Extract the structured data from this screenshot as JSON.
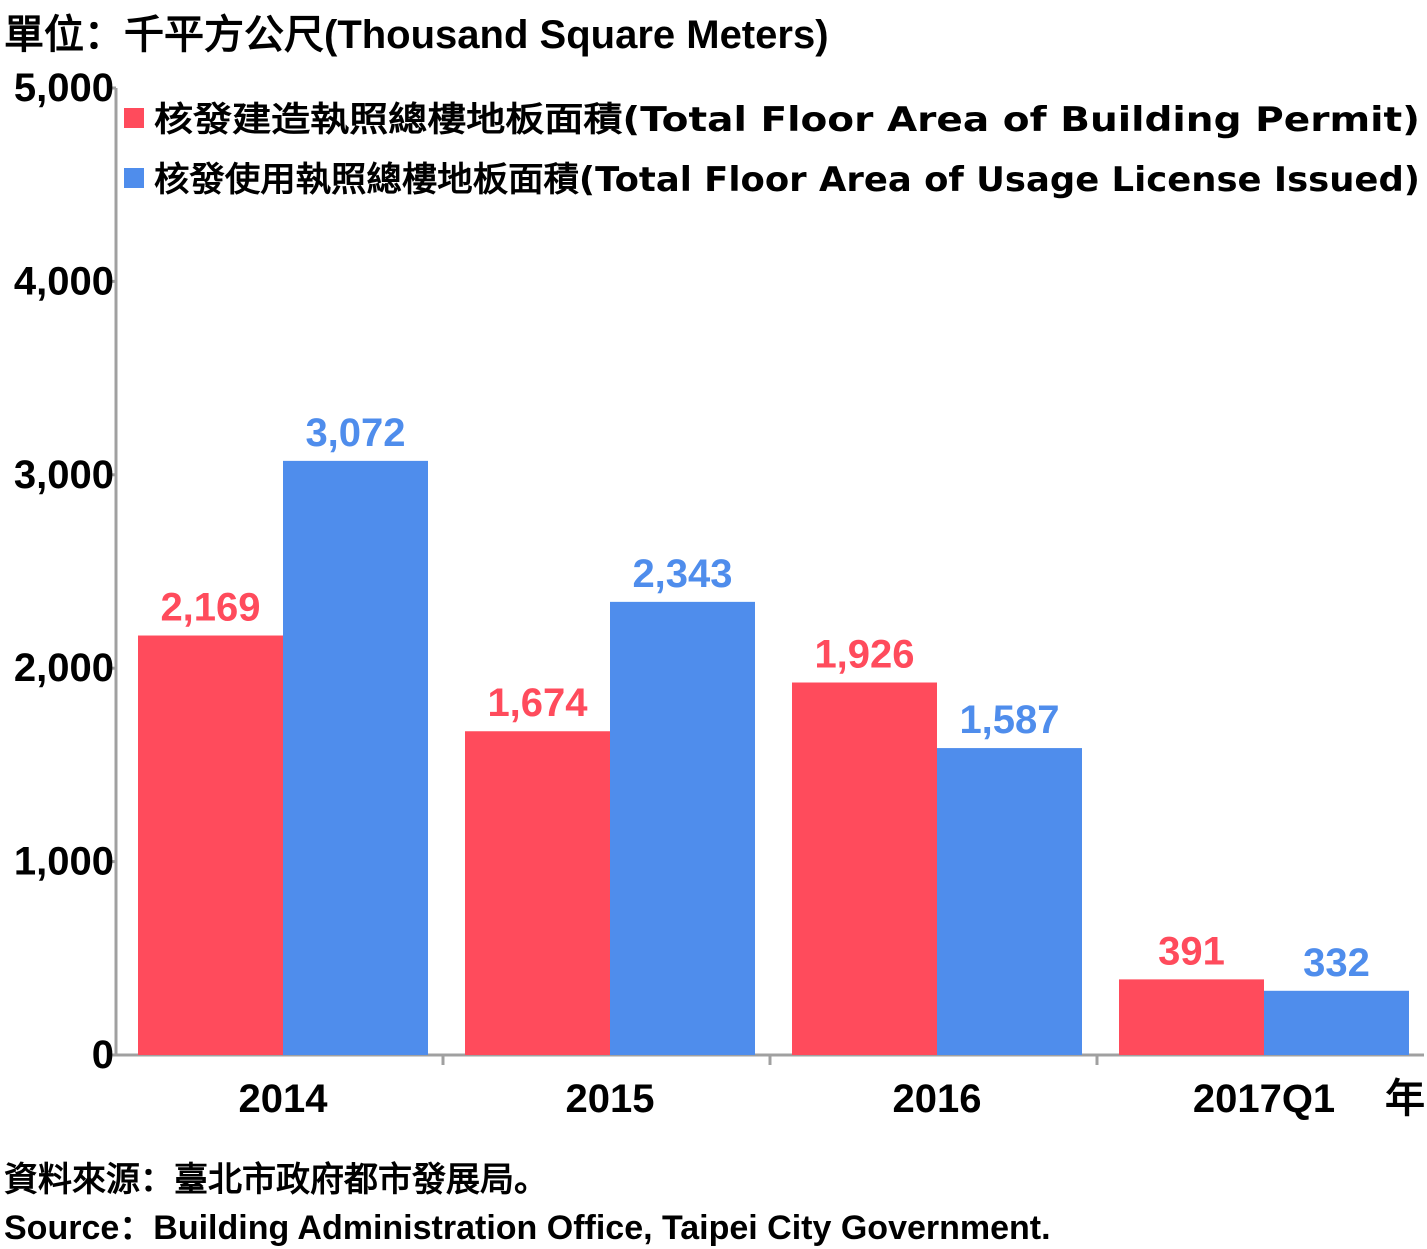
{
  "unit_label": "單位：千平方公尺(Thousand Square Meters)",
  "source_zh": "資料來源：臺北市政府都市發展局。",
  "source_en": "Source：Building Administration Office, Taipei City Government.",
  "chart_data": {
    "type": "bar",
    "categories": [
      "2014",
      "2015",
      "2016",
      "2017Q1"
    ],
    "x_unit_label": "年",
    "ylim": [
      0,
      5000
    ],
    "yticks": [
      0,
      1000,
      2000,
      3000,
      4000,
      5000
    ],
    "ytick_labels": [
      "0",
      "1,000",
      "2,000",
      "3,000",
      "4,000",
      "5,000"
    ],
    "grid": false,
    "legend_position": "top",
    "series": [
      {
        "name": "核發建造執照總樓地板面積(Total Floor Area of Building Permit)",
        "color": "#ff4b5c",
        "values": [
          2169,
          1674,
          1926,
          391
        ],
        "labels": [
          "2,169",
          "1,674",
          "1,926",
          "391"
        ]
      },
      {
        "name": "核發使用執照總樓地板面積(Total Floor Area of Usage License Issued)",
        "color": "#4f8dec",
        "values": [
          3072,
          2343,
          1587,
          332
        ],
        "labels": [
          "3,072",
          "2,343",
          "1,587",
          "332"
        ]
      }
    ]
  }
}
